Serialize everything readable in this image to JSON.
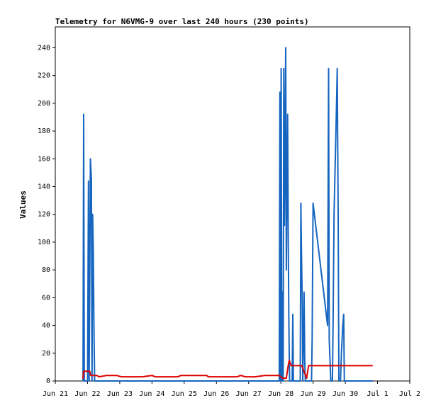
{
  "chart_data": {
    "type": "line",
    "title": "Telemetry for N6VMG-9 over last 240 hours (230 points)",
    "xlabel": "",
    "ylabel": "Values",
    "x_axis": {
      "unit": "day",
      "range": [
        "Jun 21",
        "Jul 2"
      ],
      "tick_labels": [
        "Jun 21",
        "Jun 22",
        "Jun 23",
        "Jun 24",
        "Jun 25",
        "Jun 26",
        "Jun 27",
        "Jun 28",
        "Jun 29",
        "Jun 30",
        "Jul 1",
        "Jul 2"
      ]
    },
    "y_axis": {
      "range": [
        0,
        255
      ],
      "tick_values": [
        0,
        20,
        40,
        60,
        80,
        100,
        120,
        140,
        160,
        180,
        200,
        220,
        240
      ]
    },
    "grid": false,
    "legend": "none",
    "series": [
      {
        "color": "#1565c0",
        "points": [
          [
            0.86,
            0
          ],
          [
            0.88,
            192
          ],
          [
            0.9,
            0
          ],
          [
            1.0,
            0
          ],
          [
            1.03,
            144
          ],
          [
            1.05,
            0
          ],
          [
            1.07,
            72
          ],
          [
            1.09,
            160
          ],
          [
            1.12,
            146
          ],
          [
            1.14,
            0
          ],
          [
            1.16,
            120
          ],
          [
            1.18,
            92
          ],
          [
            1.2,
            40
          ],
          [
            1.22,
            0
          ],
          [
            1.3,
            0
          ],
          [
            3.0,
            0
          ],
          [
            5.0,
            0
          ],
          [
            6.5,
            0
          ],
          [
            6.95,
            0
          ],
          [
            6.97,
            208
          ],
          [
            6.99,
            0
          ],
          [
            7.01,
            225
          ],
          [
            7.03,
            0
          ],
          [
            7.05,
            64
          ],
          [
            7.07,
            0
          ],
          [
            7.09,
            225
          ],
          [
            7.11,
            112
          ],
          [
            7.13,
            168
          ],
          [
            7.15,
            240
          ],
          [
            7.17,
            80
          ],
          [
            7.19,
            148
          ],
          [
            7.21,
            192
          ],
          [
            7.23,
            100
          ],
          [
            7.25,
            40
          ],
          [
            7.27,
            0
          ],
          [
            7.35,
            0
          ],
          [
            7.37,
            48
          ],
          [
            7.39,
            0
          ],
          [
            7.6,
            0
          ],
          [
            7.62,
            128
          ],
          [
            7.64,
            90
          ],
          [
            7.66,
            60
          ],
          [
            7.68,
            0
          ],
          [
            7.72,
            64
          ],
          [
            7.74,
            16
          ],
          [
            7.76,
            0
          ],
          [
            7.95,
            0
          ],
          [
            7.97,
            30
          ],
          [
            8.0,
            128
          ],
          [
            8.45,
            40
          ],
          [
            8.48,
            225
          ],
          [
            8.5,
            30
          ],
          [
            8.55,
            0
          ],
          [
            8.6,
            0
          ],
          [
            8.62,
            40
          ],
          [
            8.65,
            120
          ],
          [
            8.72,
            192
          ],
          [
            8.75,
            225
          ],
          [
            8.78,
            110
          ],
          [
            8.8,
            0
          ],
          [
            8.85,
            0
          ],
          [
            8.88,
            20
          ],
          [
            8.92,
            40
          ],
          [
            8.95,
            48
          ],
          [
            8.97,
            0
          ],
          [
            9.5,
            0
          ],
          [
            9.85,
            0
          ]
        ]
      },
      {
        "color": "#dd0000",
        "points": [
          [
            0.84,
            2
          ],
          [
            0.86,
            2
          ],
          [
            0.88,
            7
          ],
          [
            1.07,
            7
          ],
          [
            1.1,
            4
          ],
          [
            1.3,
            4
          ],
          [
            1.35,
            3
          ],
          [
            1.6,
            4
          ],
          [
            1.9,
            4
          ],
          [
            2.05,
            3
          ],
          [
            2.5,
            3
          ],
          [
            2.7,
            3
          ],
          [
            3.0,
            4
          ],
          [
            3.1,
            3
          ],
          [
            3.5,
            3
          ],
          [
            3.8,
            3
          ],
          [
            3.9,
            4
          ],
          [
            4.0,
            4
          ],
          [
            4.5,
            4
          ],
          [
            4.7,
            4
          ],
          [
            4.75,
            3
          ],
          [
            5.1,
            3
          ],
          [
            5.5,
            3
          ],
          [
            5.65,
            3
          ],
          [
            5.75,
            4
          ],
          [
            5.9,
            3
          ],
          [
            6.2,
            3
          ],
          [
            6.5,
            4
          ],
          [
            6.95,
            4
          ],
          [
            7.05,
            2
          ],
          [
            7.17,
            2
          ],
          [
            7.22,
            10
          ],
          [
            7.26,
            15
          ],
          [
            7.32,
            11
          ],
          [
            7.65,
            11
          ],
          [
            7.7,
            8
          ],
          [
            7.8,
            2
          ],
          [
            7.86,
            11
          ],
          [
            8.3,
            11
          ],
          [
            8.8,
            11
          ],
          [
            9.2,
            11
          ],
          [
            9.85,
            11
          ]
        ]
      }
    ]
  }
}
